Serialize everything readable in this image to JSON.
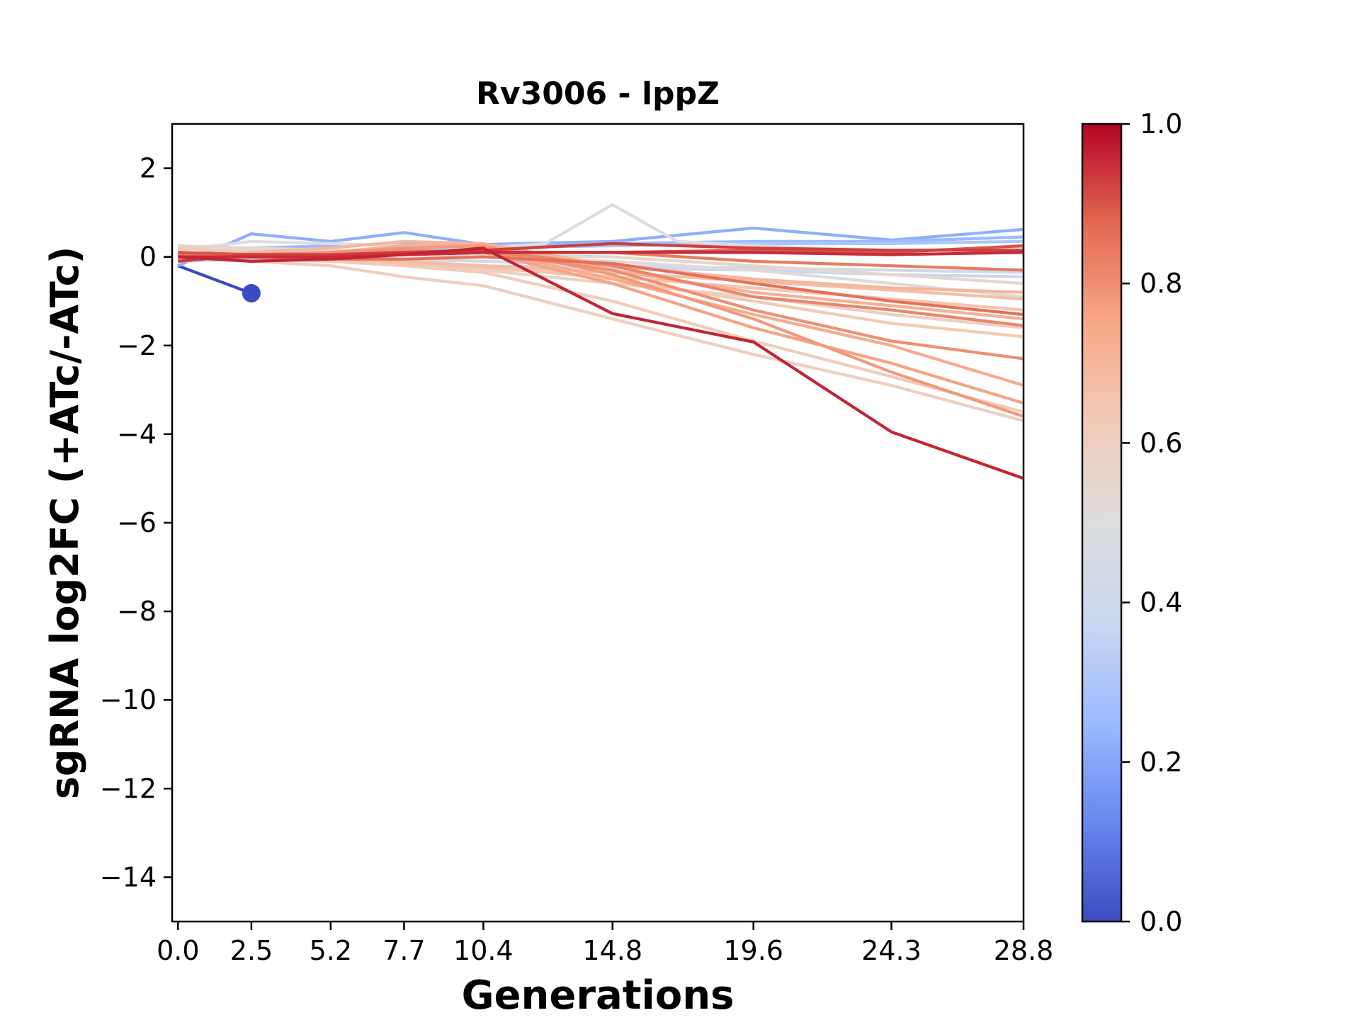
{
  "chart_data": {
    "type": "line",
    "title": "Rv3006 - lppZ",
    "xlabel": "Generations",
    "ylabel": "sgRNA log2FC (+ATc/-ATc)",
    "x_ticks": [
      0.0,
      2.5,
      5.2,
      7.7,
      10.4,
      14.8,
      19.6,
      24.3,
      28.8
    ],
    "x_tick_labels": [
      "0.0",
      "2.5",
      "5.2",
      "7.7",
      "10.4",
      "14.8",
      "19.6",
      "24.3",
      "28.8"
    ],
    "xlim": [
      -0.2,
      28.8
    ],
    "y_ticks": [
      2,
      0,
      -2,
      -4,
      -6,
      -8,
      -10,
      -12,
      -14
    ],
    "y_tick_labels": [
      "2",
      "0",
      "−2",
      "−4",
      "−6",
      "−8",
      "−10",
      "−12",
      "−14"
    ],
    "ylim": [
      -15,
      3
    ],
    "grid": false,
    "colorbar": {
      "colormap": "coolwarm",
      "range": [
        0.0,
        1.0
      ],
      "ticks": [
        0.0,
        0.2,
        0.4,
        0.6,
        0.8,
        1.0
      ],
      "tick_labels": [
        "0.0",
        "0.2",
        "0.4",
        "0.6",
        "0.8",
        "1.0"
      ],
      "stops": [
        "#3b4cc0",
        "#6788ee",
        "#9abbff",
        "#c9d7f0",
        "#dddddd",
        "#f2cbb7",
        "#f7a889",
        "#e26952",
        "#b40426"
      ]
    },
    "series": [
      {
        "color_value": 0.0,
        "x": [
          0.0,
          2.5
        ],
        "y": [
          -0.2,
          -0.82
        ],
        "marker_last": true
      },
      {
        "color_value": 0.22,
        "x": [
          0.0,
          2.5,
          5.2,
          7.7,
          10.4,
          14.8,
          19.6,
          24.3,
          28.8
        ],
        "y": [
          -0.2,
          0.52,
          0.35,
          0.55,
          0.28,
          0.35,
          0.65,
          0.38,
          0.62
        ]
      },
      {
        "color_value": 0.25,
        "x": [
          0.0,
          2.5,
          5.2,
          7.7,
          10.4,
          14.8,
          19.6,
          24.3,
          28.8
        ],
        "y": [
          -0.1,
          0.2,
          0.25,
          0.3,
          0.25,
          0.3,
          0.35,
          0.35,
          0.45
        ]
      },
      {
        "color_value": 0.3,
        "x": [
          0.0,
          2.5,
          5.2,
          7.7,
          10.4,
          14.8,
          19.6,
          24.3,
          28.8
        ],
        "y": [
          0.0,
          0.1,
          0.1,
          0.15,
          0.2,
          0.25,
          0.3,
          0.3,
          0.35
        ]
      },
      {
        "color_value": 0.38,
        "x": [
          0.0,
          2.5,
          5.2,
          7.7,
          10.4,
          14.8,
          19.6,
          24.3,
          28.8
        ],
        "y": [
          -0.1,
          -0.05,
          -0.1,
          -0.1,
          -0.2,
          -0.25,
          -0.3,
          -0.4,
          -0.45
        ]
      },
      {
        "color_value": 0.42,
        "x": [
          0.0,
          2.5,
          5.2,
          7.7,
          10.4,
          14.8,
          19.6,
          24.3,
          28.8
        ],
        "y": [
          0.1,
          0.0,
          0.0,
          -0.05,
          -0.1,
          -0.2,
          -0.25,
          -0.3,
          -0.35
        ]
      },
      {
        "color_value": 0.5,
        "x": [
          0.0,
          2.5,
          5.2,
          7.7,
          10.4,
          12.5,
          14.8,
          17.0,
          19.6,
          24.3,
          28.8
        ],
        "y": [
          0.15,
          0.35,
          0.3,
          0.25,
          0.2,
          0.3,
          1.18,
          0.35,
          0.25,
          0.15,
          0.2
        ]
      },
      {
        "color_value": 0.52,
        "x": [
          0.0,
          2.5,
          5.2,
          7.7,
          10.4,
          14.8,
          19.6,
          24.3,
          28.8
        ],
        "y": [
          0.2,
          0.15,
          0.1,
          0.05,
          0.0,
          -0.1,
          -0.3,
          -0.6,
          -0.9
        ]
      },
      {
        "color_value": 0.55,
        "x": [
          0.0,
          2.5,
          5.2,
          7.7,
          10.4,
          14.8,
          19.6,
          24.3,
          28.8
        ],
        "y": [
          0.25,
          0.2,
          0.15,
          0.1,
          0.05,
          0.0,
          -0.2,
          -0.4,
          -0.6
        ]
      },
      {
        "color_value": 0.58,
        "x": [
          0.0,
          2.5,
          5.2,
          7.7,
          10.4,
          14.8,
          19.6,
          24.3,
          28.8
        ],
        "y": [
          0.1,
          0.0,
          -0.1,
          -0.2,
          -0.3,
          -0.6,
          -0.9,
          -1.3,
          -1.6
        ]
      },
      {
        "color_value": 0.6,
        "x": [
          0.0,
          2.5,
          5.2,
          7.7,
          10.4,
          14.8,
          19.6,
          24.3,
          28.8
        ],
        "y": [
          0.0,
          -0.1,
          -0.2,
          -0.45,
          -0.65,
          -1.4,
          -2.2,
          -2.9,
          -3.7
        ]
      },
      {
        "color_value": 0.62,
        "x": [
          0.0,
          2.5,
          5.2,
          7.7,
          10.4,
          14.8,
          19.6,
          24.3,
          28.8
        ],
        "y": [
          0.05,
          0.0,
          -0.1,
          -0.2,
          -0.35,
          -1.0,
          -1.9,
          -2.7,
          -3.5
        ]
      },
      {
        "color_value": 0.63,
        "x": [
          0.0,
          2.5,
          5.2,
          7.7,
          10.4,
          14.8,
          19.6,
          24.3,
          28.8
        ],
        "y": [
          0.2,
          0.1,
          0.0,
          -0.1,
          -0.2,
          -0.5,
          -1.0,
          -1.5,
          -1.8
        ]
      },
      {
        "color_value": 0.65,
        "x": [
          0.0,
          2.5,
          5.2,
          7.7,
          10.4,
          14.8,
          19.6,
          24.3,
          28.8
        ],
        "y": [
          0.1,
          0.05,
          -0.05,
          -0.15,
          -0.25,
          -0.45,
          -0.7,
          -0.95,
          -1.2
        ]
      },
      {
        "color_value": 0.67,
        "x": [
          0.0,
          2.5,
          5.2,
          7.7,
          10.4,
          14.8,
          19.6,
          24.3,
          28.8
        ],
        "y": [
          0.0,
          0.0,
          -0.05,
          -0.1,
          -0.2,
          -0.35,
          -0.55,
          -0.75,
          -0.95
        ]
      },
      {
        "color_value": 0.7,
        "x": [
          0.0,
          2.5,
          5.2,
          7.7,
          10.4,
          14.8,
          19.6,
          24.3,
          28.8
        ],
        "y": [
          -0.1,
          0.1,
          0.2,
          0.35,
          0.3,
          -0.2,
          -0.5,
          -0.7,
          -0.8
        ]
      },
      {
        "color_value": 0.72,
        "x": [
          0.0,
          2.5,
          5.2,
          7.7,
          10.4,
          14.8,
          19.6,
          24.3,
          28.8
        ],
        "y": [
          0.0,
          0.05,
          0.1,
          0.25,
          0.3,
          -0.3,
          -0.8,
          -1.1,
          -1.4
        ]
      },
      {
        "color_value": 0.74,
        "x": [
          0.0,
          2.5,
          5.2,
          7.7,
          10.4,
          14.8,
          19.6,
          24.3,
          28.8
        ],
        "y": [
          0.1,
          0.0,
          0.05,
          0.1,
          0.15,
          -0.5,
          -1.3,
          -2.0,
          -2.9
        ]
      },
      {
        "color_value": 0.76,
        "x": [
          0.0,
          2.5,
          5.2,
          7.7,
          10.4,
          14.8,
          19.6,
          24.3,
          28.8
        ],
        "y": [
          0.05,
          0.0,
          0.0,
          0.05,
          0.1,
          -0.6,
          -1.6,
          -2.4,
          -3.3
        ]
      },
      {
        "color_value": 0.78,
        "x": [
          0.0,
          2.5,
          5.2,
          7.7,
          10.4,
          14.8,
          19.6,
          24.3,
          28.8
        ],
        "y": [
          -0.05,
          0.0,
          0.1,
          0.2,
          0.25,
          -0.4,
          -1.4,
          -2.6,
          -3.6
        ]
      },
      {
        "color_value": 0.8,
        "x": [
          0.0,
          2.5,
          5.2,
          7.7,
          10.4,
          14.8,
          19.6,
          24.3,
          28.8
        ],
        "y": [
          0.0,
          0.05,
          0.1,
          0.15,
          0.1,
          -0.3,
          -1.2,
          -1.9,
          -2.3
        ]
      },
      {
        "color_value": 0.82,
        "x": [
          0.0,
          2.5,
          5.2,
          7.7,
          10.4,
          14.8,
          19.6,
          24.3,
          28.8
        ],
        "y": [
          0.0,
          0.0,
          0.05,
          0.1,
          0.15,
          -0.2,
          -0.9,
          -1.2,
          -1.55
        ]
      },
      {
        "color_value": 0.84,
        "x": [
          0.0,
          2.5,
          5.2,
          7.7,
          10.4,
          14.8,
          19.6,
          24.3,
          28.8
        ],
        "y": [
          0.1,
          0.05,
          0.0,
          0.05,
          0.1,
          0.1,
          -0.1,
          -0.2,
          -0.3
        ]
      },
      {
        "color_value": 0.86,
        "x": [
          0.0,
          2.5,
          5.2,
          7.7,
          10.4,
          14.8,
          19.6,
          24.3,
          28.8
        ],
        "y": [
          0.05,
          0.0,
          -0.05,
          -0.05,
          0.0,
          -0.15,
          -0.6,
          -1.0,
          -1.3
        ]
      },
      {
        "color_value": 0.9,
        "x": [
          0.0,
          2.5,
          5.2,
          7.7,
          10.4,
          14.8,
          19.6,
          24.3,
          28.8
        ],
        "y": [
          0.1,
          0.05,
          0.0,
          0.05,
          0.1,
          0.1,
          0.15,
          0.1,
          0.25
        ]
      },
      {
        "color_value": 0.93,
        "x": [
          0.0,
          2.5,
          5.2,
          7.7,
          10.4,
          14.8,
          19.6,
          24.3,
          28.8
        ],
        "y": [
          -0.1,
          0.05,
          0.05,
          0.1,
          0.15,
          0.3,
          0.2,
          0.15,
          0.15
        ]
      },
      {
        "color_value": 0.95,
        "x": [
          0.0,
          2.5,
          5.2,
          7.7,
          10.4,
          14.8,
          19.6,
          24.3,
          28.8
        ],
        "y": [
          0.0,
          0.0,
          0.0,
          0.05,
          0.1,
          0.1,
          0.1,
          0.05,
          0.1
        ]
      },
      {
        "color_value": 0.96,
        "x": [
          0.0,
          2.5,
          5.2,
          7.7,
          10.4,
          14.8,
          19.6,
          24.3,
          28.8
        ],
        "y": [
          0.0,
          -0.1,
          -0.05,
          0.05,
          0.2,
          -1.28,
          -1.92,
          -3.95,
          -5.0
        ]
      }
    ]
  }
}
